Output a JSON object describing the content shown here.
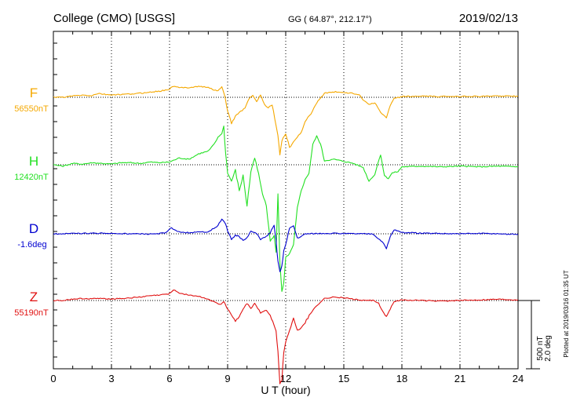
{
  "header": {
    "station": "College (CMO)  [USGS]",
    "coords": "GG ( 64.87°, 212.17°)",
    "date": "2019/02/13"
  },
  "scale_bar": {
    "nt": "500 nT",
    "deg": "2.0 deg"
  },
  "plotted_note": "Plotted at 2019/03/16 01:35 UT",
  "colors": {
    "F": "#f5a800",
    "H": "#22e022",
    "D": "#0000d0",
    "Z": "#e01010"
  },
  "chart_data": {
    "type": "line",
    "xlabel": "U T (hour)",
    "xlim": [
      0,
      24
    ],
    "xticks": [
      0,
      3,
      6,
      9,
      12,
      15,
      18,
      21,
      24
    ],
    "grid": true,
    "series": [
      {
        "name": "F",
        "baseline": "56550nT",
        "values": [
          [
            0,
            0
          ],
          [
            0.5,
            0
          ],
          [
            1,
            10
          ],
          [
            1.5,
            15
          ],
          [
            2,
            12
          ],
          [
            2.3,
            28
          ],
          [
            2.7,
            20
          ],
          [
            3,
            18
          ],
          [
            3.5,
            20
          ],
          [
            4,
            24
          ],
          [
            4.5,
            30
          ],
          [
            5,
            38
          ],
          [
            5.5,
            45
          ],
          [
            6,
            60
          ],
          [
            6.2,
            82
          ],
          [
            6.5,
            70
          ],
          [
            7,
            72
          ],
          [
            7.5,
            80
          ],
          [
            8,
            72
          ],
          [
            8.3,
            55
          ],
          [
            8.5,
            45
          ],
          [
            8.7,
            78
          ],
          [
            8.8,
            40
          ],
          [
            9,
            -100
          ],
          [
            9.2,
            -190
          ],
          [
            9.4,
            -140
          ],
          [
            9.6,
            -110
          ],
          [
            9.9,
            -80
          ],
          [
            10.1,
            -10
          ],
          [
            10.3,
            15
          ],
          [
            10.5,
            -30
          ],
          [
            10.7,
            15
          ],
          [
            10.9,
            -50
          ],
          [
            11.1,
            -80
          ],
          [
            11.3,
            -50
          ],
          [
            11.5,
            -210
          ],
          [
            11.6,
            -280
          ],
          [
            11.7,
            -420
          ],
          [
            11.8,
            -320
          ],
          [
            12,
            -260
          ],
          [
            12.2,
            -370
          ],
          [
            12.4,
            -330
          ],
          [
            12.6,
            -290
          ],
          [
            12.8,
            -260
          ],
          [
            13,
            -175
          ],
          [
            13.3,
            -120
          ],
          [
            13.6,
            -40
          ],
          [
            14,
            30
          ],
          [
            14.5,
            40
          ],
          [
            15,
            35
          ],
          [
            15.5,
            28
          ],
          [
            15.8,
            20
          ],
          [
            16,
            -20
          ],
          [
            16.3,
            -50
          ],
          [
            16.6,
            -40
          ],
          [
            16.9,
            -110
          ],
          [
            17.2,
            -150
          ],
          [
            17.4,
            -60
          ],
          [
            17.6,
            -10
          ],
          [
            18,
            5
          ],
          [
            19,
            8
          ],
          [
            20,
            5
          ],
          [
            21,
            8
          ],
          [
            22,
            6
          ],
          [
            23,
            10
          ],
          [
            24,
            8
          ]
        ]
      },
      {
        "name": "H",
        "baseline": "12420nT",
        "values": [
          [
            0,
            0
          ],
          [
            0.5,
            -10
          ],
          [
            1,
            10
          ],
          [
            1.5,
            5
          ],
          [
            2,
            15
          ],
          [
            2.5,
            10
          ],
          [
            3,
            5
          ],
          [
            3.5,
            15
          ],
          [
            4,
            15
          ],
          [
            4.5,
            10
          ],
          [
            5,
            20
          ],
          [
            5.5,
            15
          ],
          [
            6,
            20
          ],
          [
            6.5,
            50
          ],
          [
            7,
            40
          ],
          [
            7.5,
            80
          ],
          [
            8,
            100
          ],
          [
            8.3,
            150
          ],
          [
            8.5,
            200
          ],
          [
            8.7,
            230
          ],
          [
            8.8,
            280
          ],
          [
            8.9,
            80
          ],
          [
            9,
            -60
          ],
          [
            9.2,
            -120
          ],
          [
            9.4,
            -40
          ],
          [
            9.6,
            -190
          ],
          [
            9.8,
            -80
          ],
          [
            10,
            -300
          ],
          [
            10.2,
            -50
          ],
          [
            10.4,
            50
          ],
          [
            10.6,
            -70
          ],
          [
            10.8,
            -210
          ],
          [
            11,
            -300
          ],
          [
            11.2,
            -560
          ],
          [
            11.4,
            -520
          ],
          [
            11.5,
            -640
          ],
          [
            11.6,
            -210
          ],
          [
            11.7,
            -720
          ],
          [
            11.8,
            -930
          ],
          [
            11.9,
            -870
          ],
          [
            12,
            -680
          ],
          [
            12.2,
            -650
          ],
          [
            12.4,
            -590
          ],
          [
            12.6,
            -320
          ],
          [
            12.8,
            -190
          ],
          [
            13,
            -110
          ],
          [
            13.2,
            -60
          ],
          [
            13.4,
            150
          ],
          [
            13.6,
            210
          ],
          [
            13.8,
            150
          ],
          [
            14,
            30
          ],
          [
            14.5,
            40
          ],
          [
            15,
            25
          ],
          [
            15.5,
            10
          ],
          [
            16,
            -20
          ],
          [
            16.3,
            -120
          ],
          [
            16.6,
            -70
          ],
          [
            16.9,
            80
          ],
          [
            17.1,
            -80
          ],
          [
            17.3,
            -100
          ],
          [
            17.5,
            -60
          ],
          [
            17.8,
            -50
          ],
          [
            18,
            -15
          ],
          [
            19,
            -10
          ],
          [
            20,
            -15
          ],
          [
            21,
            -10
          ],
          [
            22,
            -15
          ],
          [
            23,
            -10
          ],
          [
            24,
            -15
          ]
        ]
      },
      {
        "name": "D",
        "baseline": "-1.6deg",
        "values": [
          [
            0,
            0
          ],
          [
            1,
            2
          ],
          [
            2,
            4
          ],
          [
            3,
            3
          ],
          [
            4,
            0
          ],
          [
            5,
            -2
          ],
          [
            5.8,
            5
          ],
          [
            6.1,
            45
          ],
          [
            6.4,
            15
          ],
          [
            7,
            8
          ],
          [
            8,
            15
          ],
          [
            8.5,
            60
          ],
          [
            8.7,
            110
          ],
          [
            8.9,
            70
          ],
          [
            9,
            20
          ],
          [
            9.2,
            -40
          ],
          [
            9.4,
            -10
          ],
          [
            9.6,
            -20
          ],
          [
            9.8,
            -50
          ],
          [
            10,
            -30
          ],
          [
            10.2,
            20
          ],
          [
            10.5,
            0
          ],
          [
            10.7,
            -40
          ],
          [
            11,
            -20
          ],
          [
            11.2,
            10
          ],
          [
            11.4,
            60
          ],
          [
            11.5,
            -50
          ],
          [
            11.6,
            -200
          ],
          [
            11.7,
            -280
          ],
          [
            11.8,
            -240
          ],
          [
            11.9,
            -120
          ],
          [
            12,
            -80
          ],
          [
            12.2,
            40
          ],
          [
            12.4,
            60
          ],
          [
            12.6,
            -30
          ],
          [
            12.8,
            -20
          ],
          [
            13,
            0
          ],
          [
            14,
            4
          ],
          [
            15,
            2
          ],
          [
            16,
            0
          ],
          [
            16.5,
            0
          ],
          [
            17,
            -60
          ],
          [
            17.2,
            -110
          ],
          [
            17.4,
            -20
          ],
          [
            17.6,
            30
          ],
          [
            18,
            10
          ],
          [
            19,
            4
          ],
          [
            20,
            2
          ],
          [
            21,
            0
          ],
          [
            22,
            2
          ],
          [
            23,
            0
          ],
          [
            24,
            -4
          ]
        ]
      },
      {
        "name": "Z",
        "baseline": "55190nT",
        "values": [
          [
            0,
            0
          ],
          [
            0.5,
            0
          ],
          [
            1,
            10
          ],
          [
            1.5,
            15
          ],
          [
            2,
            12
          ],
          [
            2.5,
            15
          ],
          [
            3,
            12
          ],
          [
            3.5,
            15
          ],
          [
            4,
            20
          ],
          [
            4.5,
            25
          ],
          [
            5,
            35
          ],
          [
            5.5,
            40
          ],
          [
            6,
            50
          ],
          [
            6.2,
            80
          ],
          [
            6.5,
            55
          ],
          [
            7,
            40
          ],
          [
            7.5,
            30
          ],
          [
            8,
            10
          ],
          [
            8.3,
            -10
          ],
          [
            8.6,
            -30
          ],
          [
            8.8,
            -10
          ],
          [
            9,
            -60
          ],
          [
            9.2,
            -110
          ],
          [
            9.4,
            -150
          ],
          [
            9.6,
            -120
          ],
          [
            9.8,
            -60
          ],
          [
            10,
            -20
          ],
          [
            10.2,
            -60
          ],
          [
            10.4,
            -20
          ],
          [
            10.7,
            -90
          ],
          [
            11,
            -70
          ],
          [
            11.2,
            -110
          ],
          [
            11.4,
            -180
          ],
          [
            11.5,
            -220
          ],
          [
            11.6,
            -380
          ],
          [
            11.7,
            -610
          ],
          [
            11.8,
            -580
          ],
          [
            11.9,
            -380
          ],
          [
            12,
            -300
          ],
          [
            12.2,
            -220
          ],
          [
            12.4,
            -130
          ],
          [
            12.6,
            -220
          ],
          [
            12.8,
            -200
          ],
          [
            13,
            -160
          ],
          [
            13.5,
            -50
          ],
          [
            14,
            15
          ],
          [
            14.5,
            25
          ],
          [
            15,
            20
          ],
          [
            15.5,
            10
          ],
          [
            16,
            0
          ],
          [
            16.5,
            0
          ],
          [
            16.8,
            -20
          ],
          [
            17,
            -80
          ],
          [
            17.2,
            -120
          ],
          [
            17.4,
            -60
          ],
          [
            17.6,
            -10
          ],
          [
            18,
            5
          ],
          [
            19,
            0
          ],
          [
            20,
            -5
          ],
          [
            21,
            0
          ],
          [
            22,
            5
          ],
          [
            23,
            10
          ],
          [
            24,
            5
          ]
        ]
      }
    ]
  }
}
